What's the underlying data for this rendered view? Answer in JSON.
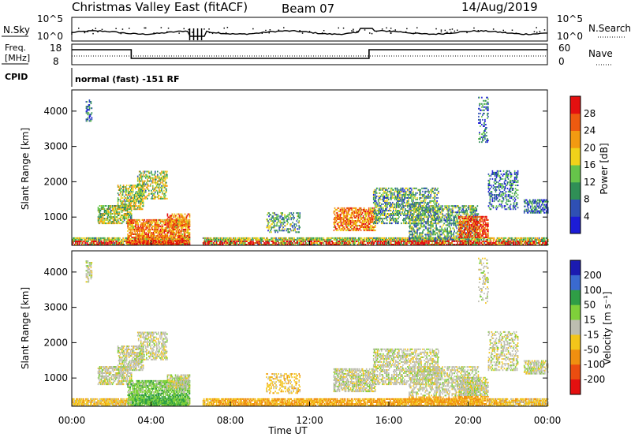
{
  "header": {
    "station": "Christmas Valley East (fitACF)",
    "beam": "Beam 07",
    "date": "14/Aug/2019",
    "cpid_label": "CPID",
    "cpid_value": "normal (fast) -151 RF"
  },
  "nsky_panel": {
    "left_label": "N.Sky",
    "right_label": "N.Search",
    "left_ticks": [
      "10^5",
      "10^0"
    ],
    "right_ticks": [
      "10^5",
      "10^0"
    ],
    "colors": {
      "line": "#000000"
    }
  },
  "freq_panel": {
    "left_label_line1": "Freq.",
    "left_label_line2": "[MHz]",
    "right_label": "Nave",
    "left_ticks": [
      "18",
      "8"
    ],
    "right_ticks": [
      "60",
      "0"
    ]
  },
  "chart_data": [
    {
      "type": "heatmap",
      "name": "power",
      "ylabel": "Slant Range [km]",
      "xlabel": "",
      "ylim": [
        200,
        4600
      ],
      "yticks": [
        1000,
        2000,
        3000,
        4000
      ],
      "colorbar": {
        "label": "Power [dB]",
        "ticks": [
          4,
          8,
          12,
          16,
          20,
          24,
          28
        ],
        "range": [
          0,
          32
        ],
        "colors": [
          "#1c1cd6",
          "#2f50b4",
          "#2f8f56",
          "#66c44a",
          "#f0d21a",
          "#f29a11",
          "#ee5a10",
          "#e41010"
        ]
      }
    },
    {
      "type": "heatmap",
      "name": "velocity",
      "ylabel": "Slant Range [km]",
      "xlabel": "Time UT",
      "ylim": [
        200,
        4600
      ],
      "yticks": [
        1000,
        2000,
        3000,
        4000
      ],
      "xticks": [
        "00:00",
        "04:00",
        "08:00",
        "12:00",
        "16:00",
        "20:00",
        "00:00"
      ],
      "colorbar": {
        "label": "Velocity [m s⁻¹]",
        "ticks": [
          "200",
          "100",
          "50",
          "15",
          "-15",
          "-50",
          "-100",
          "-200"
        ],
        "colors": [
          "#1b1bb0",
          "#3a6ad0",
          "#2f9e46",
          "#7fd03a",
          "#bdbdb0",
          "#f3c51a",
          "#f08f10",
          "#ec4d10",
          "#e41010"
        ]
      }
    }
  ]
}
